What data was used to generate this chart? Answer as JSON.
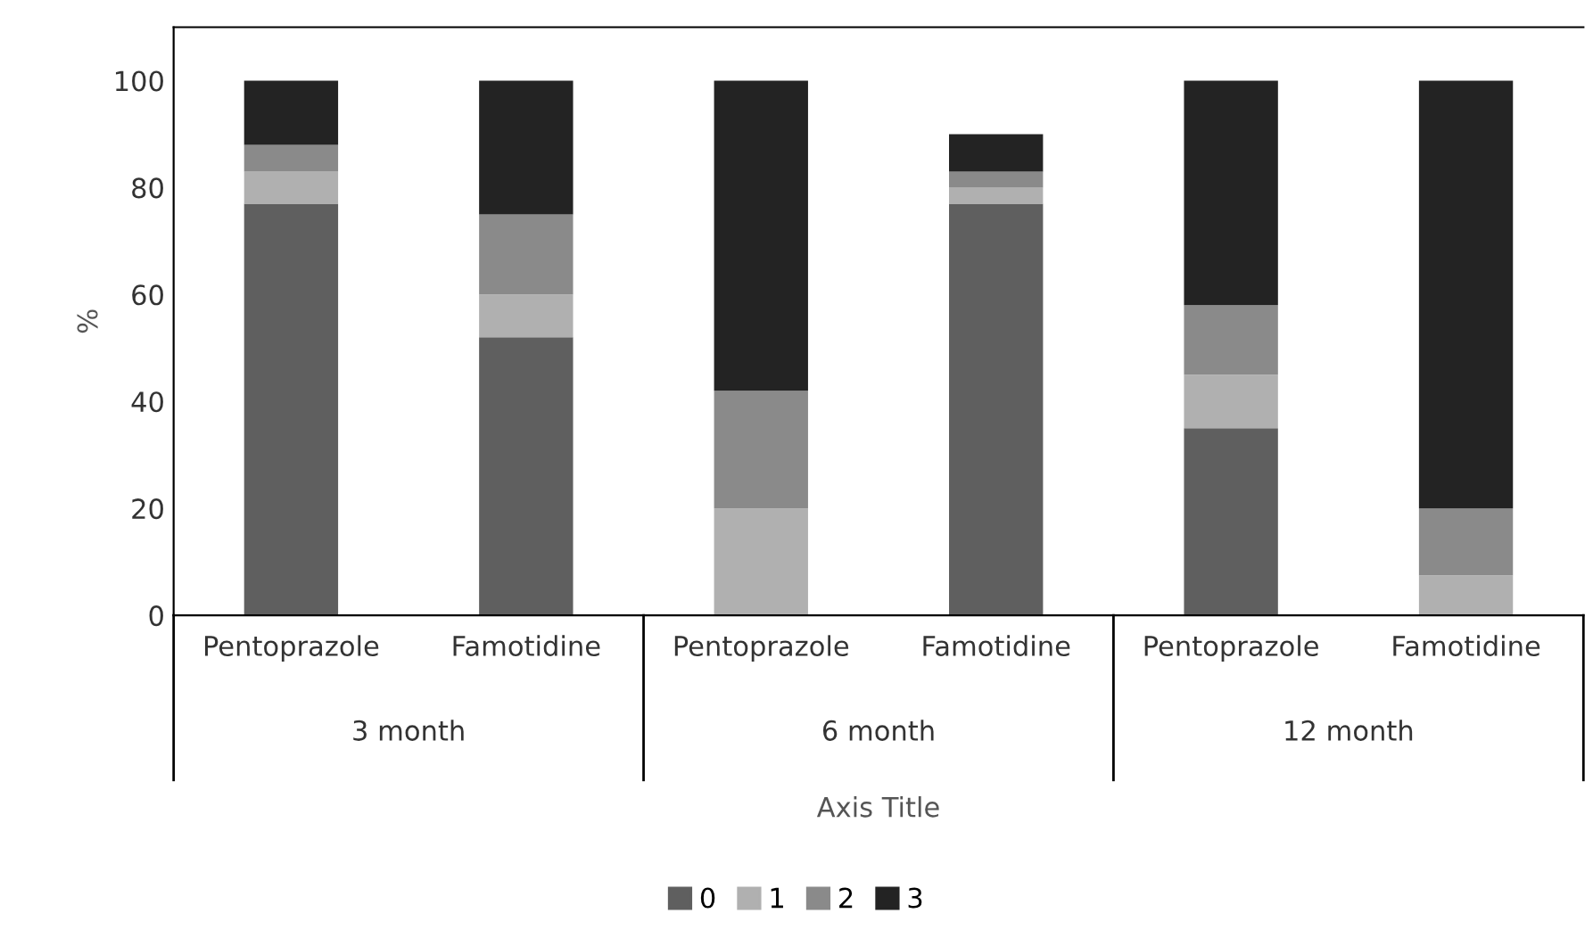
{
  "chart_data": {
    "type": "bar",
    "stacked": true,
    "ylabel": "%",
    "xlabel": "Axis Title",
    "categories": [
      "Pentoprazole",
      "Famotidine",
      "Pentoprazole",
      "Famotidine",
      "Pentoprazole",
      "Famotidine"
    ],
    "annotations": [
      "3 month",
      "6 month",
      "12 month"
    ],
    "series": [
      {
        "name": "0",
        "color": "#5f5f5f",
        "values": [
          77,
          52,
          0,
          77,
          35,
          0
        ]
      },
      {
        "name": "1",
        "color": "#b0b0b0",
        "values": [
          6,
          8,
          20,
          3,
          10,
          7.5
        ]
      },
      {
        "name": "2",
        "color": "#8a8a8a",
        "values": [
          5,
          15,
          22,
          3,
          13,
          12.5
        ]
      },
      {
        "name": "3",
        "color": "#232323",
        "values": [
          12,
          25,
          58,
          7,
          42,
          80
        ]
      }
    ],
    "ylim": [
      0,
      110
    ],
    "yticks": [
      0,
      20,
      40,
      60,
      80,
      100
    ],
    "grid": false,
    "legend": "bottom"
  }
}
